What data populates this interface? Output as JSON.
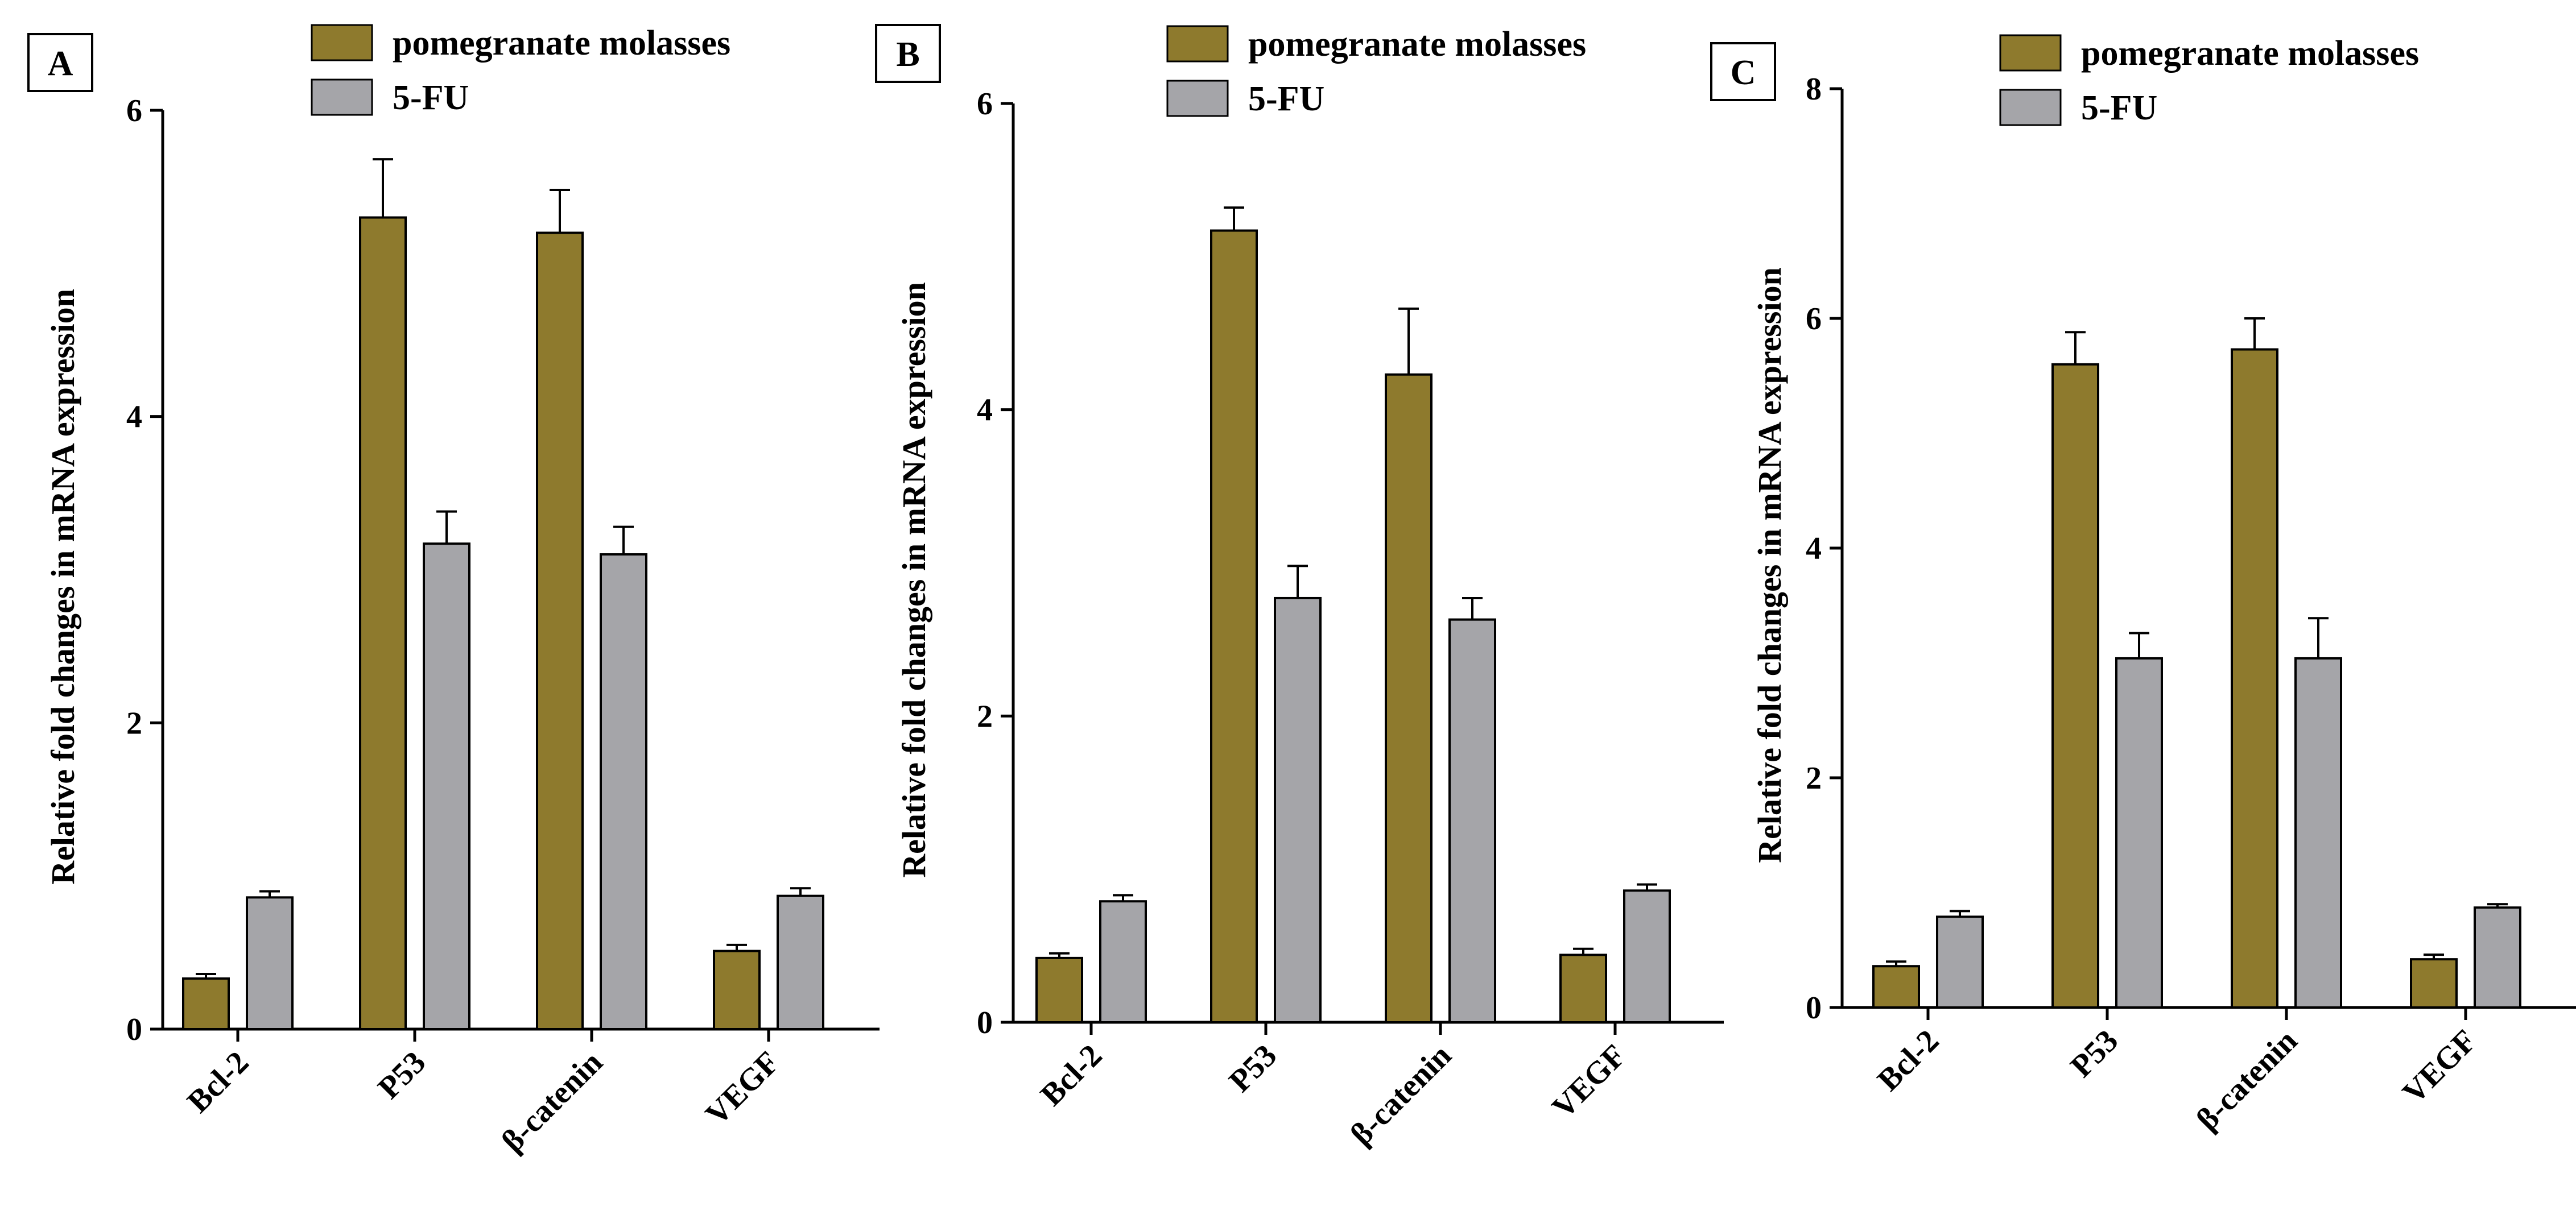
{
  "colors": {
    "pomegranate": "#8e7a2d",
    "fu": "#a5a5a9",
    "axis": "#000000"
  },
  "chart_data": [
    {
      "panel": "A",
      "type": "bar",
      "ylabel": "Relative fold changes in mRNA expression",
      "xlabel": "",
      "ylim": [
        0,
        6
      ],
      "yticks": [
        "0",
        "2",
        "4",
        "6"
      ],
      "categories": [
        "Bcl-2",
        "P53",
        "β-catenin",
        "VEGF"
      ],
      "series": [
        {
          "name": "pomegranate molasses",
          "values": [
            0.33,
            5.3,
            5.2,
            0.51
          ],
          "errors": [
            0.03,
            0.38,
            0.28,
            0.04
          ]
        },
        {
          "name": "5-FU",
          "values": [
            0.86,
            3.17,
            3.1,
            0.87
          ],
          "errors": [
            0.04,
            0.21,
            0.18,
            0.05
          ]
        }
      ],
      "legend_position": "top-right",
      "grid": false
    },
    {
      "panel": "B",
      "type": "bar",
      "ylabel": "Relative fold changes in mRNA expression",
      "xlabel": "",
      "ylim": [
        0,
        6
      ],
      "yticks": [
        "0",
        "2",
        "4",
        "6"
      ],
      "categories": [
        "Bcl-2",
        "P53",
        "β-catenin",
        "VEGF"
      ],
      "series": [
        {
          "name": "pomegranate molasses",
          "values": [
            0.42,
            5.17,
            4.23,
            0.44
          ],
          "errors": [
            0.03,
            0.15,
            0.43,
            0.04
          ]
        },
        {
          "name": "5-FU",
          "values": [
            0.79,
            2.77,
            2.63,
            0.86
          ],
          "errors": [
            0.04,
            0.21,
            0.14,
            0.04
          ]
        }
      ],
      "legend_position": "top-right",
      "grid": false
    },
    {
      "panel": "C",
      "type": "bar",
      "ylabel": "Relative fold changes in mRNA expression",
      "xlabel": "",
      "ylim": [
        0,
        8
      ],
      "yticks": [
        "0",
        "2",
        "4",
        "6",
        "8"
      ],
      "categories": [
        "Bcl-2",
        "P53",
        "β-catenin",
        "VEGF"
      ],
      "series": [
        {
          "name": "pomegranate molasses",
          "values": [
            0.36,
            5.6,
            5.73,
            0.42
          ],
          "errors": [
            0.04,
            0.28,
            0.27,
            0.04
          ]
        },
        {
          "name": "5-FU",
          "values": [
            0.79,
            3.04,
            3.04,
            0.87
          ],
          "errors": [
            0.05,
            0.22,
            0.35,
            0.03
          ]
        }
      ],
      "legend_position": "top-right",
      "grid": false
    }
  ]
}
